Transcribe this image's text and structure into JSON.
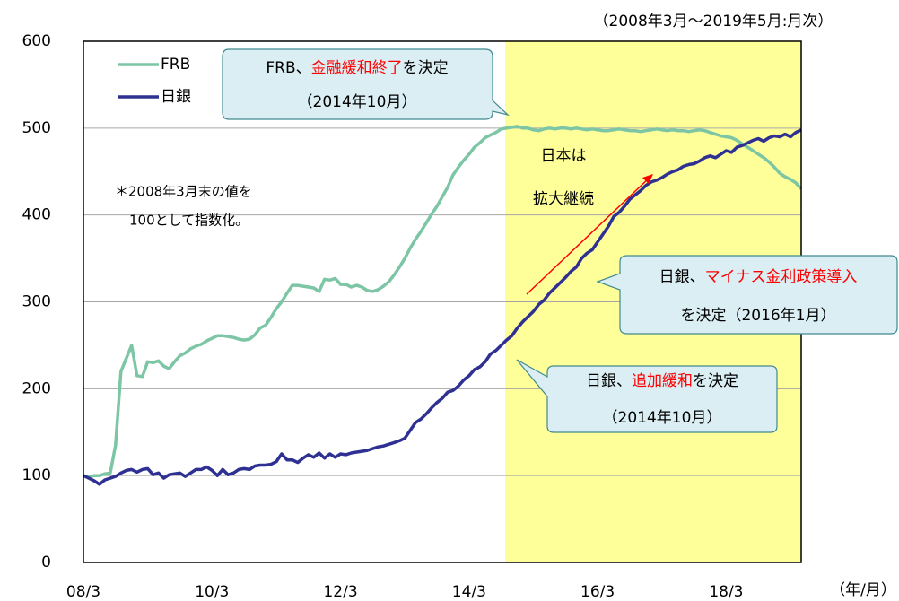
{
  "chart_data": {
    "type": "line",
    "subtitle": "（2008年3月～2019年5月:月次）",
    "x_unit": "（年/月）",
    "note": [
      "＊2008年3月末の値を",
      "100として指数化。"
    ],
    "highlight_label": [
      "日本は",
      "拡大継続"
    ],
    "categories": [
      "08/3",
      null,
      null,
      null,
      null,
      null,
      null,
      null,
      null,
      null,
      null,
      null,
      null,
      null,
      null,
      null,
      null,
      null,
      null,
      null,
      null,
      null,
      null,
      null,
      "10/3",
      null,
      null,
      null,
      null,
      null,
      null,
      null,
      null,
      null,
      null,
      null,
      null,
      null,
      null,
      null,
      null,
      null,
      null,
      null,
      null,
      null,
      null,
      null,
      "12/3",
      null,
      null,
      null,
      null,
      null,
      null,
      null,
      null,
      null,
      null,
      null,
      null,
      null,
      null,
      null,
      null,
      null,
      null,
      null,
      null,
      null,
      null,
      null,
      "14/3",
      null,
      null,
      null,
      null,
      null,
      null,
      null,
      null,
      null,
      null,
      null,
      null,
      null,
      null,
      null,
      null,
      null,
      null,
      null,
      null,
      null,
      null,
      null,
      "16/3",
      null,
      null,
      null,
      null,
      null,
      null,
      null,
      null,
      null,
      null,
      null,
      null,
      null,
      null,
      null,
      null,
      null,
      null,
      null,
      null,
      null,
      null,
      null,
      "18/3",
      null,
      null,
      null,
      null,
      null,
      null,
      null,
      null,
      null,
      null,
      null,
      null,
      null,
      null
    ],
    "series": [
      {
        "name": "FRB",
        "color": "#7cc5a5",
        "values": [
          100,
          98,
          100,
          100,
          102,
          103,
          135,
          220,
          235,
          250,
          215,
          214,
          231,
          230,
          232,
          226,
          223,
          231,
          238,
          241,
          246,
          249,
          251,
          255,
          258,
          261,
          261,
          260,
          259,
          257,
          256,
          257,
          262,
          270,
          273,
          282,
          292,
          300,
          310,
          319,
          319,
          318,
          317,
          316,
          312,
          326,
          325,
          327,
          320,
          320,
          317,
          319,
          317,
          313,
          312,
          314,
          318,
          323,
          331,
          340,
          350,
          362,
          372,
          381,
          391,
          401,
          410,
          421,
          432,
          446,
          455,
          463,
          470,
          478,
          483,
          489,
          492,
          495,
          499,
          500,
          501,
          502,
          500,
          500,
          498,
          497,
          499,
          500,
          499,
          500,
          500,
          499,
          500,
          499,
          498,
          499,
          498,
          497,
          497,
          498,
          499,
          498,
          497,
          497,
          496,
          497,
          498,
          499,
          498,
          497,
          498,
          497,
          497,
          496,
          497,
          498,
          497,
          495,
          493,
          491,
          490,
          489,
          486,
          482,
          478,
          474,
          470,
          466,
          461,
          455,
          448,
          444,
          441,
          437,
          430
        ]
      },
      {
        "name": "日銀",
        "color": "#2e3192",
        "values": [
          100,
          97,
          94,
          90,
          95,
          97,
          99,
          103,
          106,
          107,
          104,
          107,
          108,
          101,
          103,
          97,
          101,
          102,
          103,
          99,
          103,
          107,
          107,
          110,
          106,
          100,
          107,
          101,
          103,
          107,
          108,
          107,
          111,
          112,
          112,
          113,
          116,
          125,
          118,
          118,
          115,
          120,
          124,
          121,
          126,
          120,
          125,
          121,
          125,
          124,
          126,
          127,
          128,
          129,
          131,
          133,
          134,
          136,
          138,
          140,
          143,
          152,
          161,
          165,
          171,
          178,
          184,
          189,
          196,
          198,
          203,
          210,
          215,
          222,
          225,
          231,
          240,
          244,
          250,
          256,
          261,
          270,
          277,
          283,
          289,
          297,
          302,
          310,
          316,
          322,
          328,
          335,
          340,
          350,
          356,
          360,
          369,
          378,
          387,
          398,
          403,
          410,
          418,
          423,
          428,
          434,
          438,
          440,
          443,
          447,
          450,
          452,
          456,
          458,
          459,
          462,
          466,
          468,
          466,
          470,
          474,
          472,
          478,
          480,
          483,
          486,
          488,
          485,
          489,
          491,
          490,
          493,
          490,
          495,
          498
        ]
      }
    ],
    "ylim": [
      0,
      600
    ],
    "yticks": [
      0,
      100,
      200,
      300,
      400,
      500,
      600
    ],
    "grid": true,
    "legend": "top-left",
    "annotations": [
      {
        "lines": [
          [
            {
              "text": "FRB、"
            },
            {
              "text": "金融緩和終了",
              "color": "#ff0000"
            },
            {
              "text": "を決定"
            }
          ],
          [
            {
              "text": "（2014年10月）"
            }
          ]
        ]
      },
      {
        "lines": [
          [
            {
              "text": "日銀、"
            },
            {
              "text": "マイナス金利政策導入",
              "color": "#ff0000"
            }
          ],
          [
            {
              "text": "を決定（2016年1月）"
            }
          ]
        ]
      },
      {
        "lines": [
          [
            {
              "text": "日銀、"
            },
            {
              "text": "追加緩和",
              "color": "#ff0000"
            },
            {
              "text": "を決定"
            }
          ],
          [
            {
              "text": "（2014年10月）"
            }
          ]
        ]
      }
    ]
  }
}
